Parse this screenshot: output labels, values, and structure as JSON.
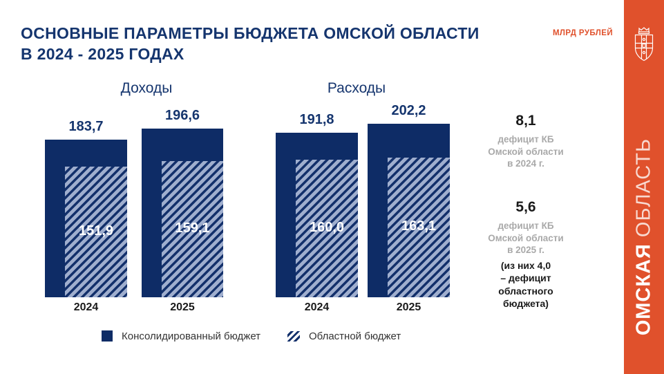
{
  "header": {
    "title_line1": "ОСНОВНЫЕ ПАРАМЕТРЫ БЮДЖЕТА ОМСКОЙ ОБЛАСТИ",
    "title_line2": "В 2024 - 2025 ГОДАХ",
    "units_label": "МЛРД РУБЛЕЙ"
  },
  "brand_band": {
    "region_name_word1": "ОМСКАЯ",
    "region_name_word2": "ОБЛАСТЬ",
    "coat_of_arms": "omsk-oblast-coat-of-arms"
  },
  "chart_data": {
    "type": "bar",
    "units": "МЛРД РУБЛЕЙ",
    "grid": false,
    "legend_position": "bottom",
    "ylim": [
      0,
      210
    ],
    "groups": [
      {
        "title": "Доходы",
        "categories": [
          "2024",
          "2025"
        ],
        "series": [
          {
            "name": "Консолидированный бюджет",
            "values": [
              183.7,
              196.6
            ]
          },
          {
            "name": "Областной бюджет",
            "values": [
              151.9,
              159.1
            ]
          }
        ]
      },
      {
        "title": "Расходы",
        "categories": [
          "2024",
          "2025"
        ],
        "series": [
          {
            "name": "Консолидированный бюджет",
            "values": [
              191.8,
              202.2
            ]
          },
          {
            "name": "Областной бюджет",
            "values": [
              160.0,
              163.1
            ]
          }
        ]
      }
    ],
    "legend": [
      "Консолидированный бюджет",
      "Областной бюджет"
    ],
    "annotations": [
      {
        "value": "8,1",
        "lines": [
          "дефицит КБ",
          "Омской области",
          "в 2024 г."
        ]
      },
      {
        "value": "5,6",
        "lines": [
          "дефицит КБ",
          "Омской области",
          "в 2025 г."
        ],
        "note_lines": [
          "(из них 4,0",
          "– дефицит",
          "областного",
          "бюджета)"
        ]
      }
    ]
  },
  "colors": {
    "navy": "#0E2C66",
    "title_navy": "#15356E",
    "hatch_light": "#9FAECE",
    "hatch_dark": "#13306B",
    "accent_red": "#E0512C",
    "gray_text": "#A9A9A9",
    "black_text": "#1A1A1A"
  }
}
